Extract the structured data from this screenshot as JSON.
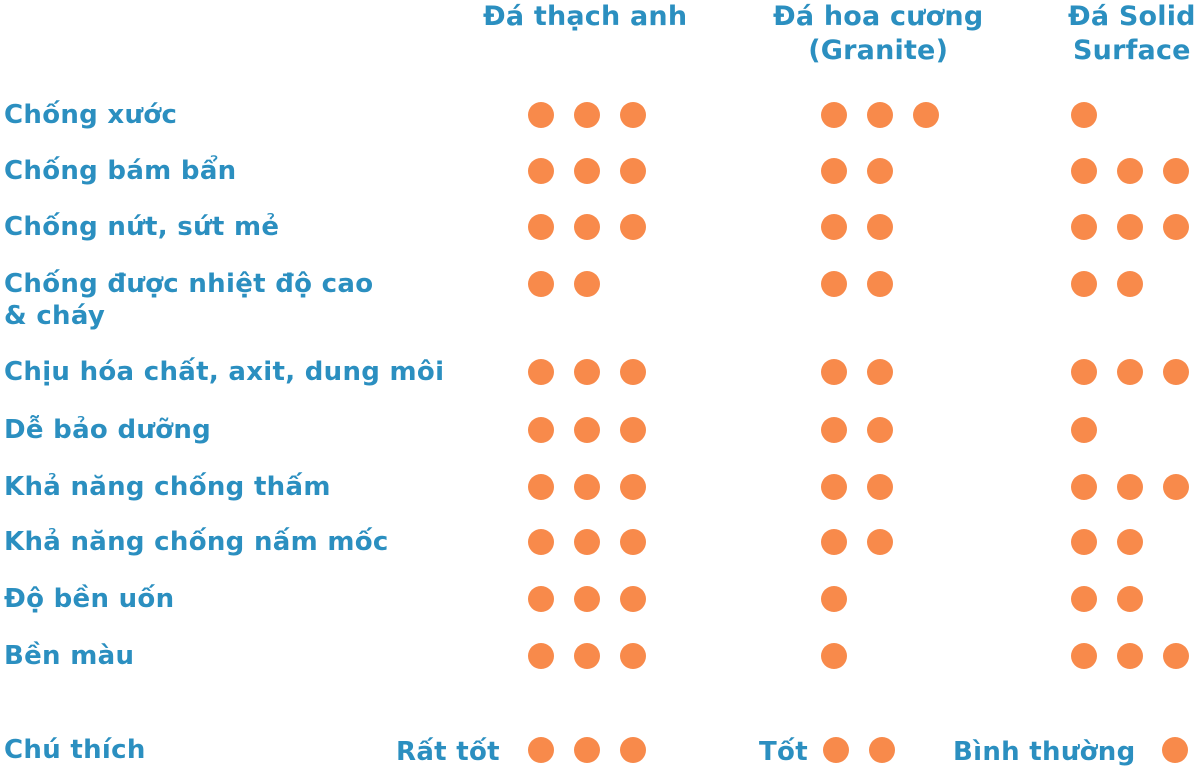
{
  "colors": {
    "text": "#2b8fc0",
    "dot": "#f88a4b",
    "background": "#ffffff"
  },
  "chart_data": {
    "type": "table",
    "columns": [
      {
        "lines": [
          "Đá thạch anh"
        ]
      },
      {
        "lines": [
          "Đá hoa cương",
          "(Granite)"
        ]
      },
      {
        "lines": [
          "Đá Solid",
          "Surface"
        ]
      }
    ],
    "rows": [
      {
        "lines": [
          "Chống xước"
        ],
        "values": [
          3,
          3,
          1
        ]
      },
      {
        "lines": [
          "Chống bám bẩn"
        ],
        "values": [
          3,
          2,
          3
        ]
      },
      {
        "lines": [
          "Chống nứt, sứt mẻ"
        ],
        "values": [
          3,
          2,
          3
        ]
      },
      {
        "lines": [
          "Chống được nhiệt độ cao",
          "& cháy"
        ],
        "values": [
          2,
          2,
          2
        ]
      },
      {
        "lines": [
          "Chịu hóa chất, axit, dung môi"
        ],
        "values": [
          3,
          2,
          3
        ]
      },
      {
        "lines": [
          "Dễ bảo dưỡng"
        ],
        "values": [
          3,
          2,
          1
        ]
      },
      {
        "lines": [
          "Khả năng chống thấm"
        ],
        "values": [
          3,
          2,
          3
        ]
      },
      {
        "lines": [
          "Khả năng chống nấm mốc"
        ],
        "values": [
          3,
          2,
          2
        ]
      },
      {
        "lines": [
          "Độ bền uốn"
        ],
        "values": [
          3,
          1,
          2
        ]
      },
      {
        "lines": [
          "Bền màu"
        ],
        "values": [
          3,
          1,
          3
        ]
      }
    ],
    "legend": {
      "title": "Chú thích",
      "entries": [
        {
          "label": "Rất tốt",
          "value": 3
        },
        {
          "label": "Tốt",
          "value": 2
        },
        {
          "label": "Bình thường",
          "value": 1
        }
      ]
    }
  }
}
